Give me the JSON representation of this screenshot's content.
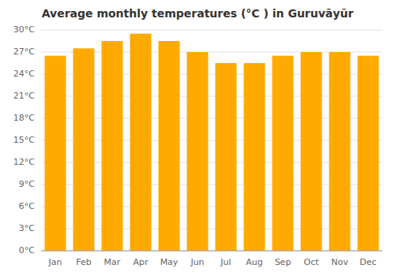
{
  "chart_data": {
    "type": "bar",
    "title": "Average monthly temperatures (°C ) in Guruvāyūr",
    "categories": [
      "Jan",
      "Feb",
      "Mar",
      "Apr",
      "May",
      "Jun",
      "Jul",
      "Aug",
      "Sep",
      "Oct",
      "Nov",
      "Dec"
    ],
    "values": [
      26.5,
      27.5,
      28.5,
      29.5,
      28.5,
      27.0,
      25.5,
      25.5,
      26.5,
      27.0,
      27.0,
      26.5
    ],
    "color": "#FFAA00",
    "ylim": [
      0,
      30
    ],
    "yticks": [
      {
        "value": 0,
        "label": "0°C"
      },
      {
        "value": 3,
        "label": "3°C"
      },
      {
        "value": 6,
        "label": "6°C"
      },
      {
        "value": 9,
        "label": "9°C"
      },
      {
        "value": 12,
        "label": "12°C"
      },
      {
        "value": 15,
        "label": "15°C"
      },
      {
        "value": 18,
        "label": "18°C"
      },
      {
        "value": 21,
        "label": "21°C"
      },
      {
        "value": 24,
        "label": "24°C"
      },
      {
        "value": 27,
        "label": "27°C"
      },
      {
        "value": 30,
        "label": "30°C"
      }
    ],
    "grid": true
  }
}
